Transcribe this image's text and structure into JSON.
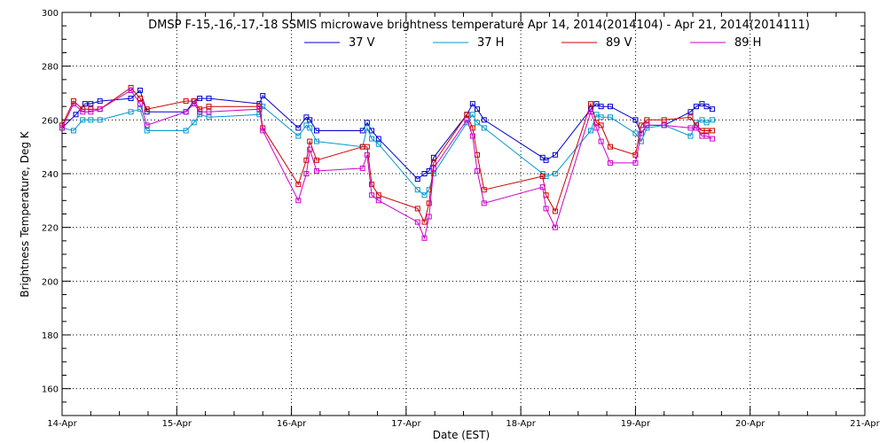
{
  "colors": {
    "background": "#ffffff",
    "axis": "#000000",
    "grid": "#000000"
  },
  "chart_data": {
    "type": "line",
    "title": "DMSP F-15,-16,-17,-18 SSMIS microwave brightness temperature Apr 14, 2014(2014104) - Apr 21, 2014(2014111)",
    "xlabel": "Date (EST)",
    "ylabel": "Brightness Temperature, Deg K",
    "xlim": [
      0,
      7
    ],
    "ylim": [
      150,
      300
    ],
    "x_ticks": [
      0,
      1,
      2,
      3,
      4,
      5,
      6,
      7
    ],
    "x_tick_labels": [
      "14-Apr",
      "15-Apr",
      "16-Apr",
      "17-Apr",
      "18-Apr",
      "19-Apr",
      "20-Apr",
      "21-Apr"
    ],
    "y_ticks": [
      160,
      180,
      200,
      220,
      240,
      260,
      280,
      300
    ],
    "y_tick_labels": [
      "160",
      "180",
      "200",
      "220",
      "240",
      "260",
      "280",
      "300"
    ],
    "y_minor_step": 5,
    "x_minor_divisions": 4,
    "grid": true,
    "legend_position": "top-center",
    "series": [
      {
        "name": "37 V",
        "color": "#0000cc",
        "x": [
          0.0,
          0.12,
          0.2,
          0.25,
          0.33,
          0.6,
          0.68,
          0.74,
          1.08,
          1.15,
          1.2,
          1.28,
          1.72,
          1.75,
          2.06,
          2.13,
          2.16,
          2.22,
          2.62,
          2.66,
          2.7,
          2.76,
          3.1,
          3.16,
          3.2,
          3.24,
          3.53,
          3.58,
          3.62,
          3.68,
          4.19,
          4.22,
          4.3,
          4.61,
          4.66,
          4.7,
          4.78,
          5.0,
          5.05,
          5.1,
          5.25,
          5.48,
          5.53,
          5.58,
          5.62,
          5.67
        ],
        "y": [
          257,
          262,
          266,
          266,
          267,
          268,
          271,
          263,
          263,
          267,
          268,
          268,
          266,
          269,
          257,
          261,
          260,
          256,
          256,
          259,
          256,
          253,
          238,
          240,
          241,
          246,
          262,
          266,
          264,
          260,
          246,
          245,
          247,
          264,
          266,
          265,
          265,
          260,
          255,
          258,
          258,
          263,
          265,
          266,
          265,
          264
        ]
      },
      {
        "name": "37 H",
        "color": "#0099cc",
        "x": [
          0.0,
          0.1,
          0.18,
          0.25,
          0.33,
          0.6,
          0.68,
          0.74,
          1.08,
          1.15,
          1.2,
          1.28,
          1.72,
          1.75,
          2.06,
          2.13,
          2.16,
          2.22,
          2.62,
          2.66,
          2.7,
          2.76,
          3.1,
          3.16,
          3.2,
          3.24,
          3.53,
          3.58,
          3.62,
          3.68,
          4.19,
          4.22,
          4.3,
          4.61,
          4.66,
          4.7,
          4.78,
          5.0,
          5.05,
          5.1,
          5.25,
          5.48,
          5.53,
          5.58,
          5.62,
          5.67
        ],
        "y": [
          257,
          256,
          260,
          260,
          260,
          263,
          264,
          256,
          256,
          259,
          262,
          261,
          262,
          265,
          254,
          258,
          257,
          252,
          250,
          257,
          253,
          251,
          234,
          232,
          234,
          240,
          259,
          262,
          259,
          257,
          240,
          239,
          240,
          256,
          262,
          261,
          261,
          255,
          252,
          257,
          258,
          254,
          259,
          260,
          259,
          260
        ]
      },
      {
        "name": "89 V",
        "color": "#cc0000",
        "x": [
          0.0,
          0.1,
          0.18,
          0.25,
          0.33,
          0.6,
          0.68,
          0.74,
          1.08,
          1.15,
          1.2,
          1.28,
          1.72,
          1.75,
          2.06,
          2.13,
          2.16,
          2.22,
          2.62,
          2.66,
          2.7,
          2.76,
          3.1,
          3.16,
          3.2,
          3.24,
          3.53,
          3.58,
          3.62,
          3.68,
          4.19,
          4.22,
          4.3,
          4.61,
          4.66,
          4.7,
          4.78,
          5.0,
          5.05,
          5.1,
          5.25,
          5.48,
          5.53,
          5.58,
          5.62,
          5.67
        ],
        "y": [
          258,
          267,
          264,
          264,
          264,
          272,
          268,
          264,
          267,
          267,
          264,
          265,
          265,
          257,
          236,
          245,
          252,
          245,
          250,
          250,
          236,
          232,
          227,
          222,
          229,
          244,
          262,
          257,
          247,
          234,
          239,
          232,
          226,
          266,
          259,
          258,
          250,
          247,
          258,
          260,
          260,
          261,
          258,
          256,
          256,
          256
        ]
      },
      {
        "name": "89 H",
        "color": "#cc00cc",
        "x": [
          0.0,
          0.1,
          0.18,
          0.25,
          0.33,
          0.6,
          0.68,
          0.74,
          1.08,
          1.15,
          1.2,
          1.28,
          1.72,
          1.75,
          2.06,
          2.13,
          2.16,
          2.22,
          2.62,
          2.66,
          2.7,
          2.76,
          3.1,
          3.16,
          3.2,
          3.24,
          3.53,
          3.58,
          3.62,
          3.68,
          4.19,
          4.22,
          4.3,
          4.61,
          4.66,
          4.7,
          4.78,
          5.0,
          5.05,
          5.1,
          5.25,
          5.48,
          5.53,
          5.58,
          5.62,
          5.67
        ],
        "y": [
          257,
          266,
          263,
          263,
          264,
          271,
          266,
          258,
          263,
          266,
          263,
          263,
          264,
          256,
          230,
          240,
          249,
          241,
          242,
          247,
          232,
          230,
          222,
          216,
          224,
          242,
          260,
          254,
          241,
          229,
          235,
          227,
          220,
          263,
          257,
          252,
          244,
          244,
          255,
          258,
          258,
          257,
          257,
          254,
          254,
          253
        ]
      }
    ]
  }
}
